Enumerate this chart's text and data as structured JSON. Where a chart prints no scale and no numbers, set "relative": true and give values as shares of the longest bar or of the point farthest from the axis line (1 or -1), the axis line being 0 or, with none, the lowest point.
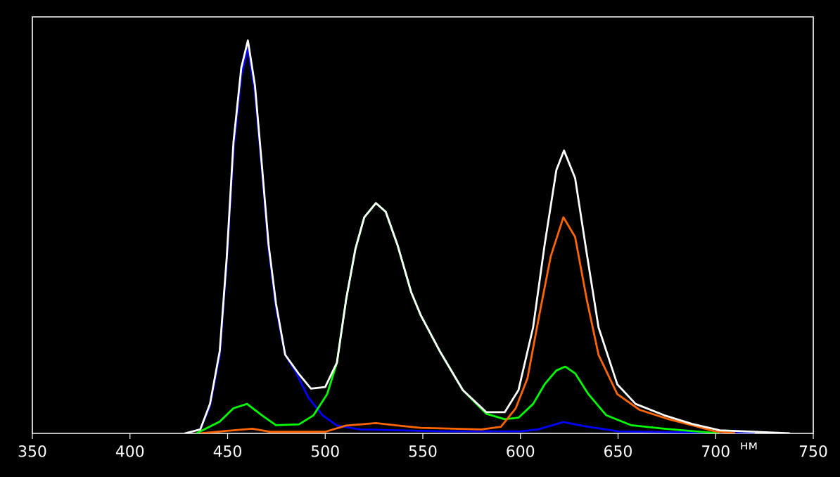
{
  "chart_data": {
    "type": "line",
    "relative": true,
    "xlabel": "нм",
    "xlim": [
      350,
      750
    ],
    "xticks": [
      350,
      400,
      450,
      500,
      550,
      600,
      650,
      700,
      750
    ],
    "series": [
      {
        "color": "#ffffff",
        "x": [
          428,
          436,
          441,
          446,
          449.6,
          453,
          457,
          460.4,
          464,
          467.6,
          471,
          474.8,
          479.5,
          486.7,
          492.7,
          500,
          506,
          510.7,
          515.5,
          520,
          526,
          531,
          537,
          544,
          549,
          558.6,
          570.5,
          582.5,
          592,
          599,
          606.5,
          612.4,
          618.4,
          622.3,
          628,
          634,
          640,
          649.6,
          659,
          673.7,
          688,
          702,
          738
        ],
        "values": [
          0,
          0.01,
          0.075,
          0.21,
          0.45,
          0.74,
          0.93,
          1.0,
          0.886,
          0.68,
          0.48,
          0.33,
          0.2,
          0.15,
          0.114,
          0.118,
          0.18,
          0.34,
          0.47,
          0.55,
          0.586,
          0.564,
          0.48,
          0.36,
          0.3,
          0.21,
          0.11,
          0.054,
          0.054,
          0.11,
          0.27,
          0.48,
          0.67,
          0.72,
          0.65,
          0.457,
          0.27,
          0.125,
          0.075,
          0.046,
          0.024,
          0.008,
          0
        ]
      },
      {
        "color": "#ff6600",
        "x": [
          436,
          453,
          462.7,
          472,
          500,
          510.7,
          526,
          539,
          549,
          580,
          590,
          597.6,
          603.6,
          609.6,
          615.5,
          622,
          628,
          634,
          640,
          649.6,
          661,
          676,
          690,
          699.6,
          710
        ],
        "values": [
          0,
          0.008,
          0.012,
          0.004,
          0.004,
          0.02,
          0.026,
          0.019,
          0.014,
          0.01,
          0.017,
          0.064,
          0.14,
          0.3,
          0.45,
          0.55,
          0.5,
          0.34,
          0.2,
          0.1,
          0.06,
          0.036,
          0.018,
          0.005,
          0
        ]
      },
      {
        "color": "#00ff00",
        "x": [
          434,
          446,
          453,
          460,
          467.6,
          474.8,
          486.6,
          494,
          501,
          506,
          510.7,
          515.5,
          520,
          526,
          531,
          537,
          544,
          549,
          558.6,
          570.5,
          582.5,
          592,
          599,
          606.5,
          612.4,
          618.4,
          623,
          628,
          634.8,
          644,
          656.6,
          673.7,
          702
        ],
        "values": [
          0,
          0.03,
          0.064,
          0.075,
          0.046,
          0.021,
          0.023,
          0.046,
          0.1,
          0.18,
          0.34,
          0.47,
          0.55,
          0.586,
          0.564,
          0.48,
          0.36,
          0.3,
          0.21,
          0.11,
          0.05,
          0.036,
          0.04,
          0.075,
          0.125,
          0.16,
          0.17,
          0.153,
          0.1,
          0.046,
          0.021,
          0.012,
          0
        ]
      },
      {
        "color": "#0000ff",
        "x": [
          436,
          441,
          446,
          449.6,
          453,
          457,
          460.4,
          464,
          467.6,
          471,
          474.8,
          479.5,
          484.5,
          491.5,
          498.7,
          506,
          518,
          560,
          600,
          609,
          622,
          633,
          650,
          720
        ],
        "values": [
          0.01,
          0.07,
          0.2,
          0.44,
          0.72,
          0.91,
          0.98,
          0.87,
          0.67,
          0.47,
          0.32,
          0.2,
          0.16,
          0.09,
          0.046,
          0.02,
          0.01,
          0.005,
          0.005,
          0.01,
          0.029,
          0.018,
          0.005,
          0
        ]
      }
    ]
  }
}
